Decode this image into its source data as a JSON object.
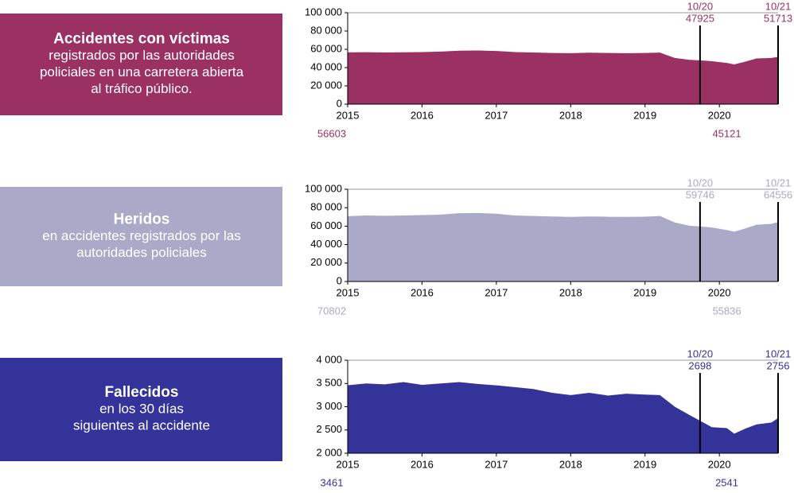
{
  "chart_data": [
    {
      "type": "area",
      "title": "Accidentes con víctimas",
      "subtitle": [
        "registrados por las autoridades",
        "policiales en una carretera abierta",
        "al tráfico público."
      ],
      "color": "#9b3163",
      "box_color": "#9b3163",
      "xlim": [
        2015,
        2020.79
      ],
      "xticks": [
        2015,
        2016,
        2017,
        2018,
        2019,
        2020
      ],
      "ylim": [
        0,
        100000
      ],
      "yticks": [
        0,
        {
          "value": 20000,
          "label": "20 000"
        },
        {
          "value": 40000,
          "label": "40 000"
        },
        {
          "value": 60000,
          "label": "60 000"
        },
        {
          "value": 80000,
          "label": "80 000"
        },
        {
          "value": 100000,
          "label": "100 000"
        }
      ],
      "x": [
        2015,
        2015.25,
        2015.5,
        2015.75,
        2016,
        2016.25,
        2016.5,
        2016.75,
        2017,
        2017.25,
        2017.5,
        2017.75,
        2018,
        2018.25,
        2018.5,
        2018.75,
        2019,
        2019.2,
        2019.4,
        2019.6,
        2019.74,
        2019.9,
        2020.1,
        2020.2,
        2020.35,
        2020.5,
        2020.7,
        2020.79
      ],
      "values": [
        56603,
        56800,
        56500,
        56700,
        57000,
        57500,
        58500,
        58700,
        58200,
        57000,
        56500,
        56000,
        55800,
        56300,
        56000,
        55800,
        56000,
        56400,
        50500,
        48500,
        47925,
        47000,
        45121,
        43500,
        46500,
        50000,
        50500,
        51713
      ],
      "markers": [
        {
          "x": 2019.74,
          "label": "10/20",
          "value": 47925
        },
        {
          "x": 2020.79,
          "label": "10/21",
          "value": 51713
        }
      ],
      "start_value": 56603,
      "low_value": 45121
    },
    {
      "type": "area",
      "title": "Heridos",
      "subtitle": [
        "en accidentes registrados por las",
        "autoridades policiales"
      ],
      "color": "#aaaac8",
      "box_color": "#aaaac8",
      "xlim": [
        2015,
        2020.79
      ],
      "xticks": [
        2015,
        2016,
        2017,
        2018,
        2019,
        2020
      ],
      "ylim": [
        0,
        100000
      ],
      "yticks": [
        0,
        {
          "value": 20000,
          "label": "20 000"
        },
        {
          "value": 40000,
          "label": "40 000"
        },
        {
          "value": 60000,
          "label": "60 000"
        },
        {
          "value": 80000,
          "label": "80 000"
        },
        {
          "value": 100000,
          "label": "100 000"
        }
      ],
      "x": [
        2015,
        2015.25,
        2015.5,
        2015.75,
        2016,
        2016.25,
        2016.5,
        2016.75,
        2017,
        2017.25,
        2017.5,
        2017.75,
        2018,
        2018.25,
        2018.5,
        2018.75,
        2019,
        2019.2,
        2019.4,
        2019.6,
        2019.74,
        2019.9,
        2020.1,
        2020.2,
        2020.35,
        2020.5,
        2020.7,
        2020.79
      ],
      "values": [
        70802,
        71500,
        71200,
        71500,
        72000,
        72500,
        74000,
        74200,
        73500,
        71500,
        71000,
        70500,
        70000,
        70500,
        70200,
        70000,
        70300,
        71000,
        64000,
        60500,
        59746,
        58500,
        55836,
        54000,
        57500,
        61500,
        62500,
        64556
      ],
      "markers": [
        {
          "x": 2019.74,
          "label": "10/20",
          "value": 59746
        },
        {
          "x": 2020.79,
          "label": "10/21",
          "value": 64556
        }
      ],
      "start_value": 70802,
      "low_value": 55836
    },
    {
      "type": "area",
      "title": "Fallecidos",
      "subtitle": [
        "en los 30 días",
        "siguientes al accidente"
      ],
      "color": "#333399",
      "box_color": "#333399",
      "xlim": [
        2015,
        2020.79
      ],
      "xticks": [
        2015,
        2016,
        2017,
        2018,
        2019,
        2020
      ],
      "ylim": [
        2000,
        4000
      ],
      "yticks": [
        {
          "value": 2000,
          "label": "2 000"
        },
        {
          "value": 2500,
          "label": "2 500"
        },
        {
          "value": 3000,
          "label": "3 000"
        },
        {
          "value": 3500,
          "label": "3 500"
        },
        {
          "value": 4000,
          "label": "4 000"
        }
      ],
      "x": [
        2015,
        2015.25,
        2015.5,
        2015.75,
        2016,
        2016.25,
        2016.5,
        2016.75,
        2017,
        2017.25,
        2017.5,
        2017.75,
        2018,
        2018.25,
        2018.5,
        2018.75,
        2019,
        2019.2,
        2019.4,
        2019.6,
        2019.74,
        2019.9,
        2020.1,
        2020.2,
        2020.35,
        2020.5,
        2020.7,
        2020.79
      ],
      "values": [
        3461,
        3500,
        3480,
        3530,
        3470,
        3500,
        3530,
        3490,
        3460,
        3420,
        3380,
        3300,
        3250,
        3300,
        3240,
        3280,
        3260,
        3250,
        3000,
        2820,
        2698,
        2560,
        2541,
        2420,
        2530,
        2620,
        2660,
        2756
      ],
      "markers": [
        {
          "x": 2019.74,
          "label": "10/20",
          "value": 2698
        },
        {
          "x": 2020.79,
          "label": "10/21",
          "value": 2756
        }
      ],
      "start_value": 3461,
      "low_value": 2541
    }
  ]
}
